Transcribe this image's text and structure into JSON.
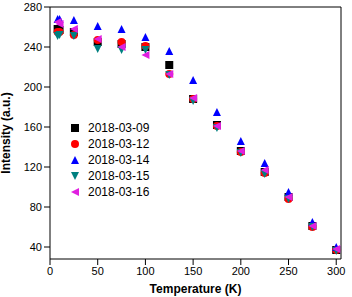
{
  "chart_data": {
    "type": "scatter",
    "x_label": "Temperature (K)",
    "y_label": "Intensity (a.u.)",
    "x": [
      8,
      10,
      25,
      50,
      75,
      100,
      125,
      150,
      175,
      200,
      225,
      250,
      275,
      300
    ],
    "xlim": [
      0,
      305
    ],
    "xticks": [
      0,
      50,
      100,
      150,
      200,
      250,
      300
    ],
    "ylim": [
      28,
      280
    ],
    "yticks": [
      40,
      80,
      120,
      160,
      200,
      240,
      280
    ],
    "grid": false,
    "legend": "left",
    "series": [
      {
        "name": "2018-03-09",
        "color": "#000000",
        "marker": "square",
        "values": [
          258,
          257,
          255,
          245,
          243,
          240,
          222,
          188,
          162,
          136,
          115,
          90,
          61,
          37
        ]
      },
      {
        "name": "2018-03-12",
        "color": "#ff0000",
        "marker": "circle",
        "values": [
          255,
          255,
          252,
          247,
          245,
          241,
          213,
          188,
          161,
          135,
          114,
          88,
          60,
          37
        ]
      },
      {
        "name": "2018-03-14",
        "color": "#0000ff",
        "marker": "triangle",
        "values": [
          268,
          268,
          267,
          261,
          258,
          250,
          236,
          207,
          175,
          146,
          124,
          95,
          65,
          40
        ]
      },
      {
        "name": "2018-03-15",
        "color": "#008080",
        "marker": "triangle-down",
        "values": [
          251,
          252,
          251,
          238,
          237,
          237,
          212,
          186,
          159,
          134,
          113,
          88,
          60,
          36
        ]
      },
      {
        "name": "2018-03-16",
        "color": "#e020e0",
        "marker": "triangle-left",
        "values": [
          265,
          263,
          258,
          248,
          240,
          232,
          213,
          189,
          161,
          136,
          117,
          90,
          61,
          38
        ]
      }
    ]
  }
}
